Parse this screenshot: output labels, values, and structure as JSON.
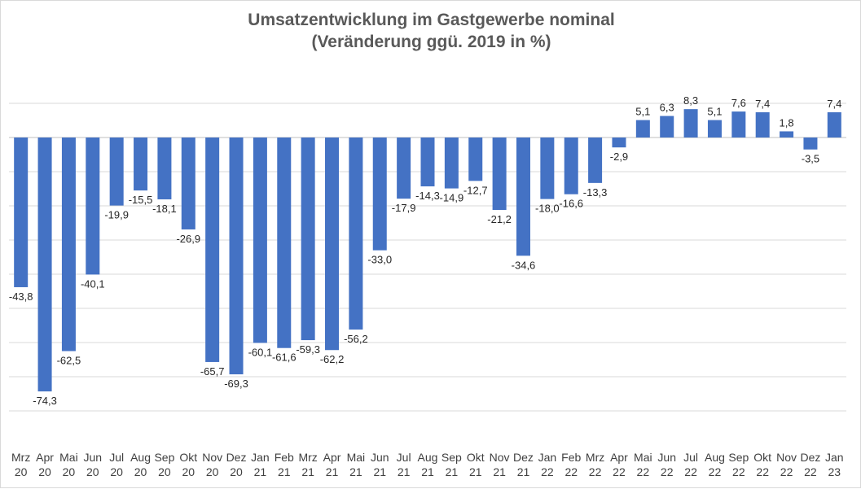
{
  "chart_data": {
    "type": "bar",
    "title": "Umsatzentwicklung im Gastgewerbe nominal",
    "subtitle": "(Veränderung ggü. 2019 in %)",
    "xlabel": "",
    "ylabel": "",
    "ylim": [
      -80,
      10
    ],
    "grid": true,
    "bar_color": "#4472c4",
    "gridline_color": "#d9d9d9",
    "categories": [
      [
        "Mrz",
        "20"
      ],
      [
        "Apr",
        "20"
      ],
      [
        "Mai",
        "20"
      ],
      [
        "Jun",
        "20"
      ],
      [
        "Jul",
        "20"
      ],
      [
        "Aug",
        "20"
      ],
      [
        "Sep",
        "20"
      ],
      [
        "Okt",
        "20"
      ],
      [
        "Nov",
        "20"
      ],
      [
        "Dez",
        "20"
      ],
      [
        "Jan",
        "21"
      ],
      [
        "Feb",
        "21"
      ],
      [
        "Mrz",
        "21"
      ],
      [
        "Apr",
        "21"
      ],
      [
        "Mai",
        "21"
      ],
      [
        "Jun",
        "21"
      ],
      [
        "Jul",
        "21"
      ],
      [
        "Aug",
        "21"
      ],
      [
        "Sep",
        "21"
      ],
      [
        "Okt",
        "21"
      ],
      [
        "Nov",
        "21"
      ],
      [
        "Dez",
        "21"
      ],
      [
        "Jan",
        "22"
      ],
      [
        "Feb",
        "22"
      ],
      [
        "Mrz",
        "22"
      ],
      [
        "Apr",
        "22"
      ],
      [
        "Mai",
        "22"
      ],
      [
        "Jun",
        "22"
      ],
      [
        "Jul",
        "22"
      ],
      [
        "Aug",
        "22"
      ],
      [
        "Sep",
        "22"
      ],
      [
        "Okt",
        "22"
      ],
      [
        "Nov",
        "22"
      ],
      [
        "Dez",
        "22"
      ],
      [
        "Jan",
        "23"
      ]
    ],
    "values": [
      -43.8,
      -74.3,
      -62.5,
      -40.1,
      -19.9,
      -15.5,
      -18.1,
      -26.9,
      -65.7,
      -69.3,
      -60.1,
      -61.6,
      -59.3,
      -62.2,
      -56.2,
      -33.0,
      -17.9,
      -14.3,
      -14.9,
      -12.7,
      -21.2,
      -34.6,
      -18.0,
      -16.6,
      -13.3,
      -2.9,
      5.1,
      6.3,
      8.3,
      5.1,
      7.6,
      7.4,
      1.8,
      -3.5,
      7.4
    ],
    "data_labels": [
      "-43,8",
      "-74,3",
      "-62,5",
      "-40,1",
      "-19,9",
      "-15,5",
      "-18,1",
      "-26,9",
      "-65,7",
      "-69,3",
      "-60,1",
      "-61,6",
      "-59,3",
      "-62,2",
      "-56,2",
      "-33,0",
      "-17,9",
      "-14,3",
      "-14,9",
      "-12,7",
      "-21,2",
      "-34,6",
      "-18,0",
      "-16,6",
      "-13,3",
      "-2,9",
      "5,1",
      "6,3",
      "8,3",
      "5,1",
      "7,6",
      "7,4",
      "1,8",
      "-3,5",
      "7,4"
    ]
  }
}
